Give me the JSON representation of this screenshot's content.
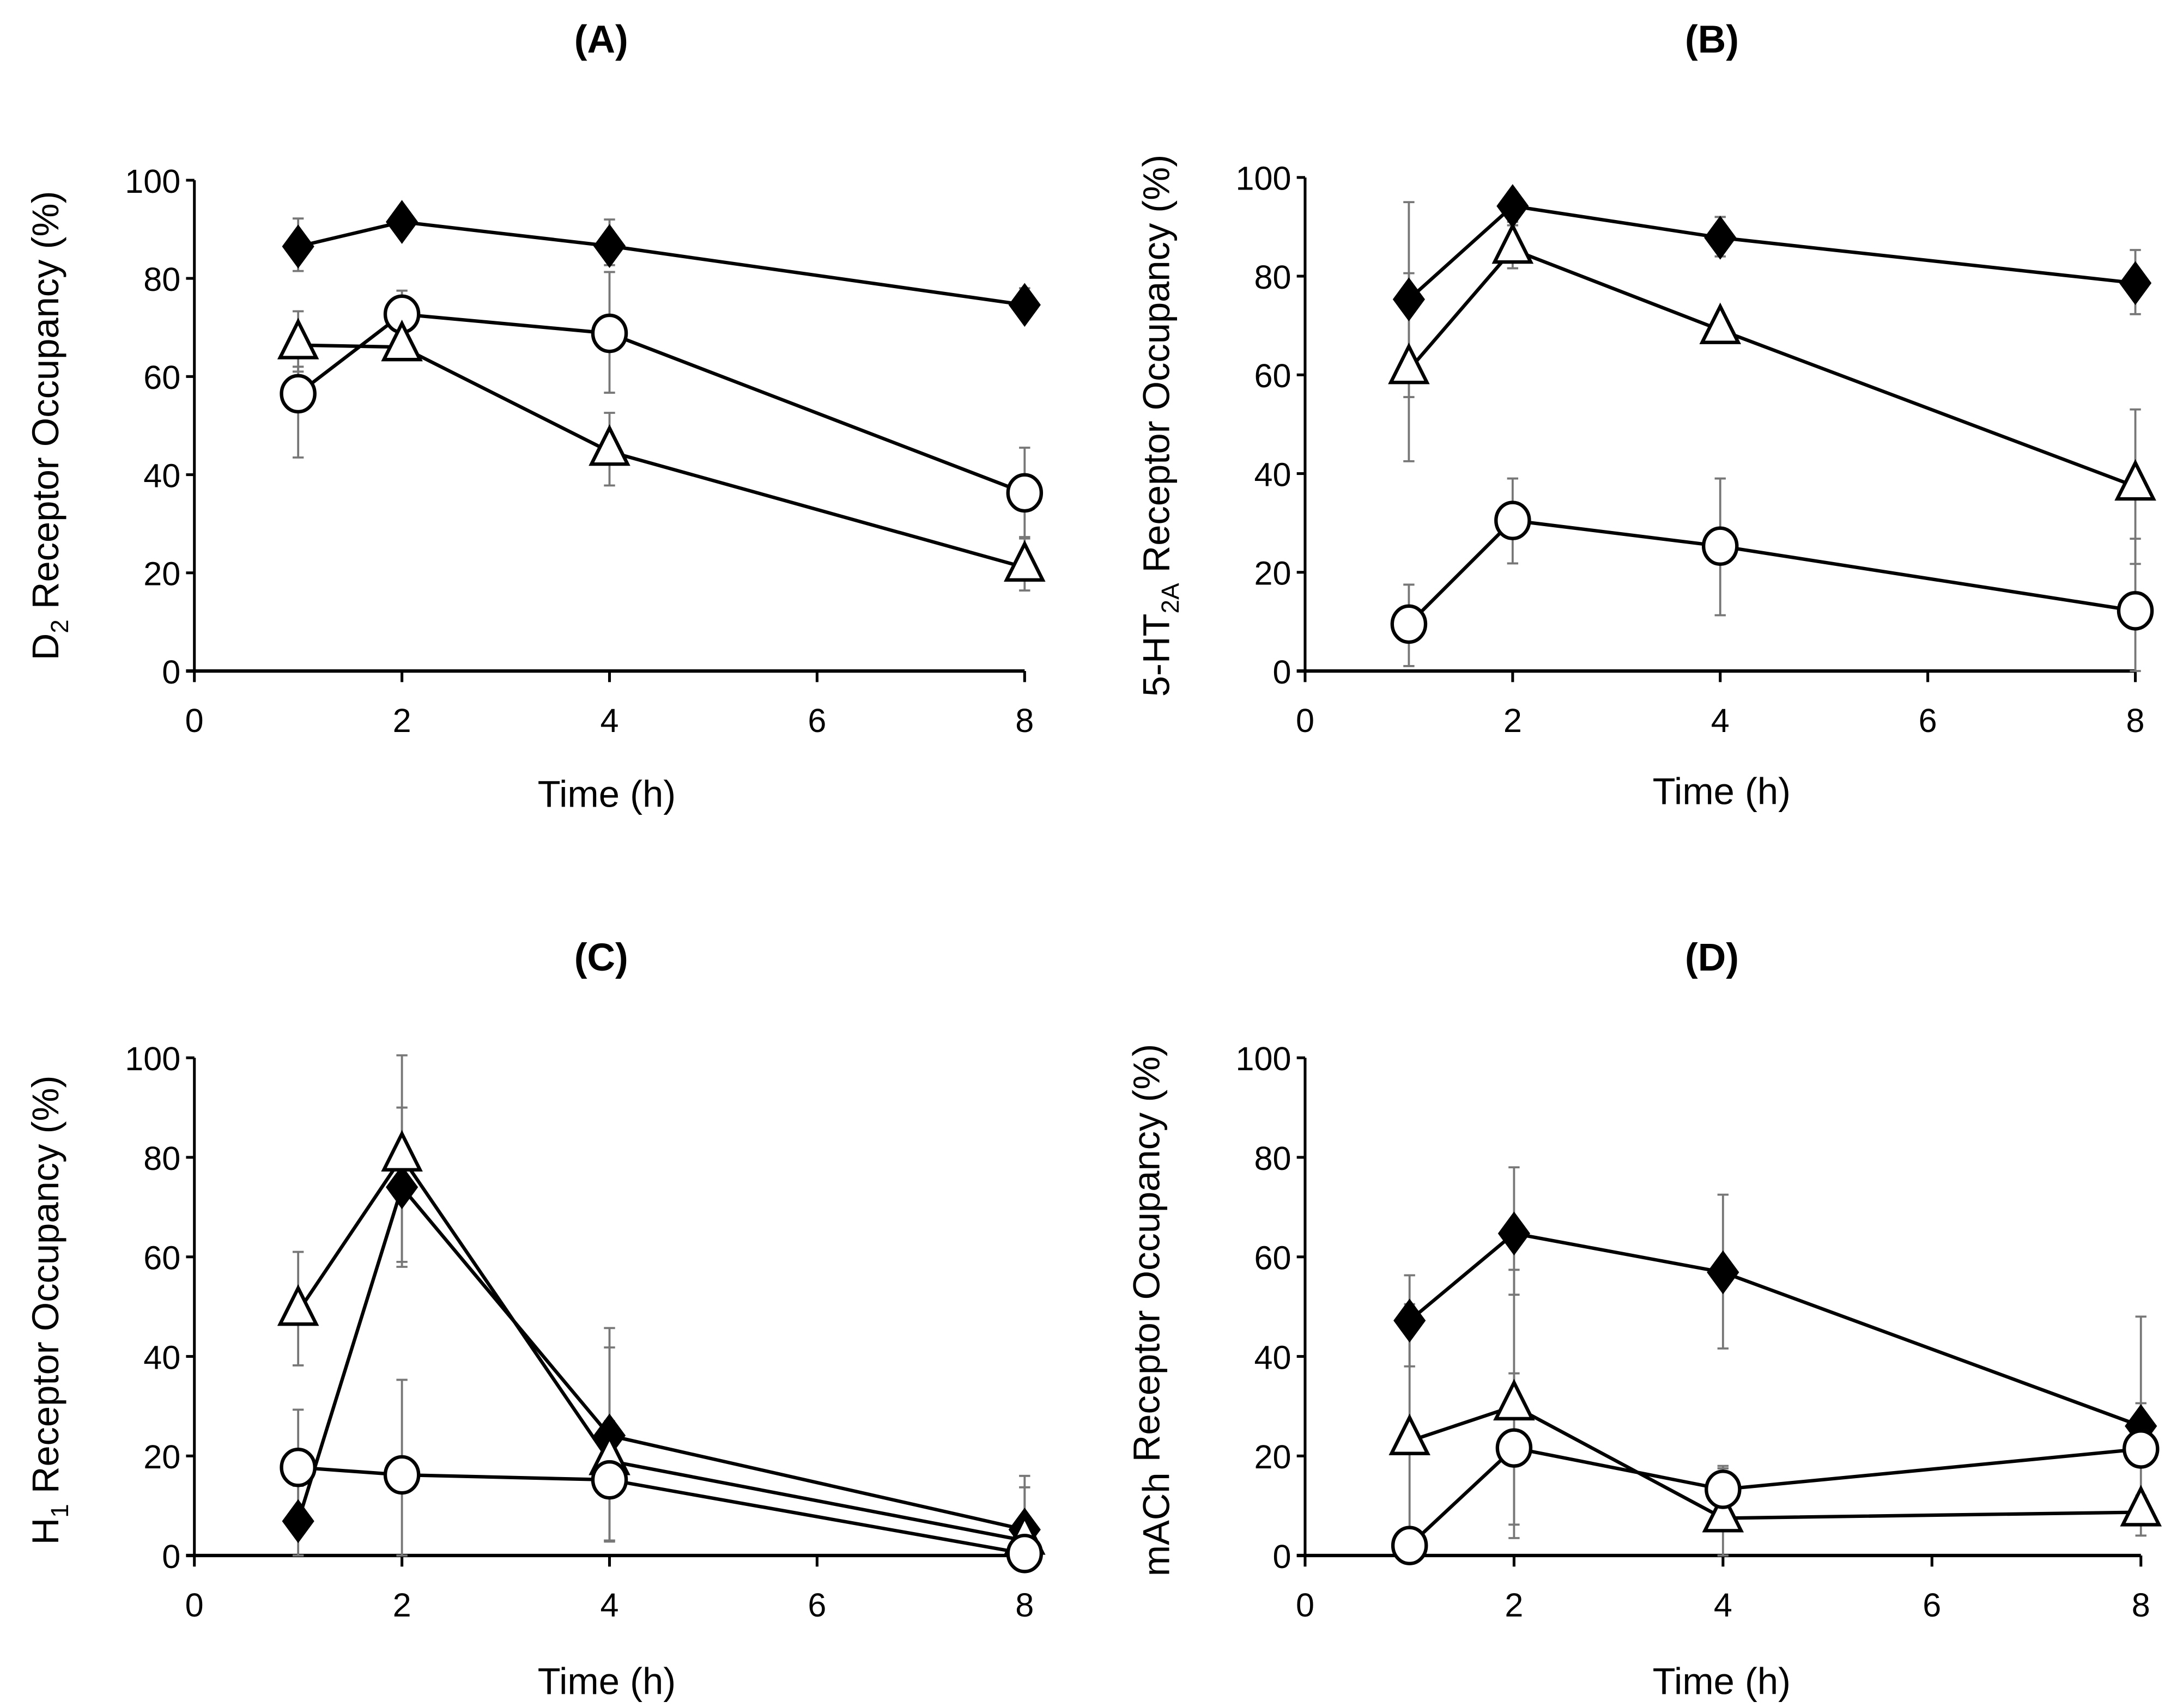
{
  "chart_data": [
    {
      "type": "line",
      "title": "(A)",
      "xlabel": "Time (h)",
      "ylabel": {
        "prefix": "D",
        "sub": "2",
        "suffix": " Receptor Occupancy (%)"
      },
      "xlim": [
        0,
        8
      ],
      "ylim": [
        0,
        100
      ],
      "xticks": [
        0,
        2,
        4,
        6,
        8
      ],
      "yticks": [
        0,
        20,
        40,
        60,
        80,
        100
      ],
      "x": [
        1,
        2,
        4,
        8
      ],
      "series": [
        {
          "name": "diamond",
          "marker": "diamond",
          "values": [
            86.5,
            91.5,
            86.6,
            74.6
          ],
          "err": [
            [
              81.5,
              92.2
            ],
            [
              91.5,
              91.5
            ],
            [
              82.7,
              92
            ],
            [
              72,
              78
            ]
          ]
        },
        {
          "name": "circle",
          "marker": "circle",
          "values": [
            56.5,
            72.7,
            68.8,
            36.3
          ],
          "err": [
            [
              43.5,
              62
            ],
            [
              69,
              77.5
            ],
            [
              56.7,
              81.3
            ],
            [
              27,
              45.5
            ]
          ]
        },
        {
          "name": "triangle",
          "marker": "triangle",
          "values": [
            66.4,
            66,
            44.7,
            21.1
          ],
          "err": [
            [
              61,
              73.3
            ],
            [
              66,
              66
            ],
            [
              37.8,
              52.6
            ],
            [
              16.4,
              27.3
            ]
          ]
        }
      ]
    },
    {
      "type": "line",
      "title": "(B)",
      "xlabel": "Time (h)",
      "ylabel": {
        "prefix": "5-HT",
        "sub": "2A",
        "suffix": " Receptor Occupancy (%)"
      },
      "xlim": [
        0,
        8
      ],
      "ylim": [
        0,
        100
      ],
      "xticks": [
        0,
        2,
        4,
        6,
        8
      ],
      "yticks": [
        0,
        20,
        40,
        60,
        80,
        100
      ],
      "x": [
        1,
        2,
        4,
        8
      ],
      "series": [
        {
          "name": "diamond",
          "marker": "diamond",
          "values": [
            75.3,
            94.2,
            87.8,
            78.6
          ],
          "err": [
            [
              55.5,
              95
            ],
            [
              91,
              97
            ],
            [
              84,
              92
            ],
            [
              72.3,
              85.3
            ]
          ]
        },
        {
          "name": "triangle",
          "marker": "triangle",
          "values": [
            61,
            85.4,
            69.1,
            37.4
          ],
          "err": [
            [
              42.5,
              80.6
            ],
            [
              81.6,
              90.3
            ],
            [
              69.1,
              69.1
            ],
            [
              21.7,
              53
            ]
          ]
        },
        {
          "name": "circle",
          "marker": "circle",
          "values": [
            9.5,
            30.5,
            25.3,
            12.2
          ],
          "err": [
            [
              1,
              17.5
            ],
            [
              21.8,
              39
            ],
            [
              11.3,
              39
            ],
            [
              0,
              26.8
            ]
          ]
        }
      ]
    },
    {
      "type": "line",
      "title": "(C)",
      "xlabel": "Time (h)",
      "ylabel": {
        "prefix": "H",
        "sub": "1",
        "suffix": " Receptor Occupancy (%)"
      },
      "xlim": [
        0,
        8
      ],
      "ylim": [
        0,
        100
      ],
      "xticks": [
        0,
        2,
        4,
        6,
        8
      ],
      "yticks": [
        0,
        20,
        40,
        60,
        80,
        100
      ],
      "x": [
        1,
        2,
        4,
        8
      ],
      "series": [
        {
          "name": "diamond",
          "marker": "diamond",
          "values": [
            6.9,
            74,
            24.1,
            5.2
          ],
          "err": [
            [
              0,
              14
            ],
            [
              59,
              90
            ],
            [
              3,
              41.8
            ],
            [
              0,
              13.7
            ]
          ]
        },
        {
          "name": "triangle",
          "marker": "triangle",
          "values": [
            49,
            80,
            19,
            3
          ],
          "err": [
            [
              38.2,
              61
            ],
            [
              58,
              100.5
            ],
            [
              3,
              45.7
            ],
            [
              0,
              16
            ]
          ]
        },
        {
          "name": "circle",
          "marker": "circle",
          "values": [
            17.7,
            16.2,
            15.2,
            0.4
          ],
          "err": [
            [
              6,
              29.3
            ],
            [
              0,
              35.3
            ],
            [
              2.8,
              27
            ],
            [
              0,
              5
            ]
          ]
        }
      ]
    },
    {
      "type": "line",
      "title": "(D)",
      "xlabel": "Time (h)",
      "ylabel": {
        "prefix": "mACh",
        "sub": "",
        "suffix": " Receptor Occupancy (%)"
      },
      "xlim": [
        0,
        8
      ],
      "ylim": [
        0,
        100
      ],
      "xticks": [
        0,
        2,
        4,
        6,
        8
      ],
      "yticks": [
        0,
        20,
        40,
        60,
        80,
        100
      ],
      "x": [
        1,
        2,
        4,
        8
      ],
      "series": [
        {
          "name": "diamond",
          "marker": "diamond",
          "values": [
            47.2,
            64.7,
            56.9,
            26
          ],
          "err": [
            [
              38,
              56.3
            ],
            [
              52.4,
              78
            ],
            [
              41.6,
              72.5
            ],
            [
              22,
              48
            ]
          ]
        },
        {
          "name": "triangle",
          "marker": "triangle",
          "values": [
            23,
            30,
            7.5,
            8.7
          ],
          "err": [
            [
              0,
              50.5
            ],
            [
              3.5,
              57.4
            ],
            [
              0,
              17.5
            ],
            [
              4,
              12
            ]
          ]
        },
        {
          "name": "circle",
          "marker": "circle",
          "values": [
            2,
            21.6,
            13.3,
            21.4
          ],
          "err": [
            [
              0,
              4
            ],
            [
              6.2,
              36.6
            ],
            [
              9,
              18
            ],
            [
              12,
              30.6
            ]
          ]
        }
      ]
    }
  ],
  "colors": {
    "line": "#000000",
    "errorbar": "#777777",
    "fill_diamond": "#000000",
    "fill_open": "#ffffff"
  }
}
